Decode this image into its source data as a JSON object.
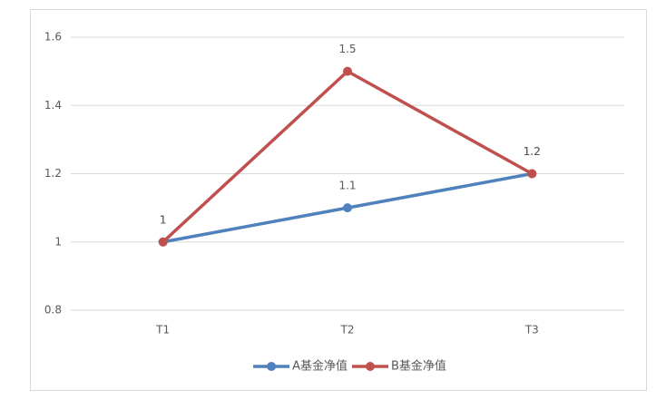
{
  "chart_data": {
    "type": "line",
    "categories": [
      "T1",
      "T2",
      "T3"
    ],
    "series": [
      {
        "name": "A基金净值",
        "color": "#4f81bd",
        "values": [
          1,
          1.1,
          1.2
        ]
      },
      {
        "name": "B基金净值",
        "color": "#c0504d",
        "values": [
          1,
          1.5,
          1.2
        ]
      }
    ],
    "ylim": [
      0.8,
      1.6
    ],
    "yticks": [
      0.8,
      1,
      1.2,
      1.4,
      1.6
    ],
    "grid": true,
    "legend": "bottom"
  }
}
